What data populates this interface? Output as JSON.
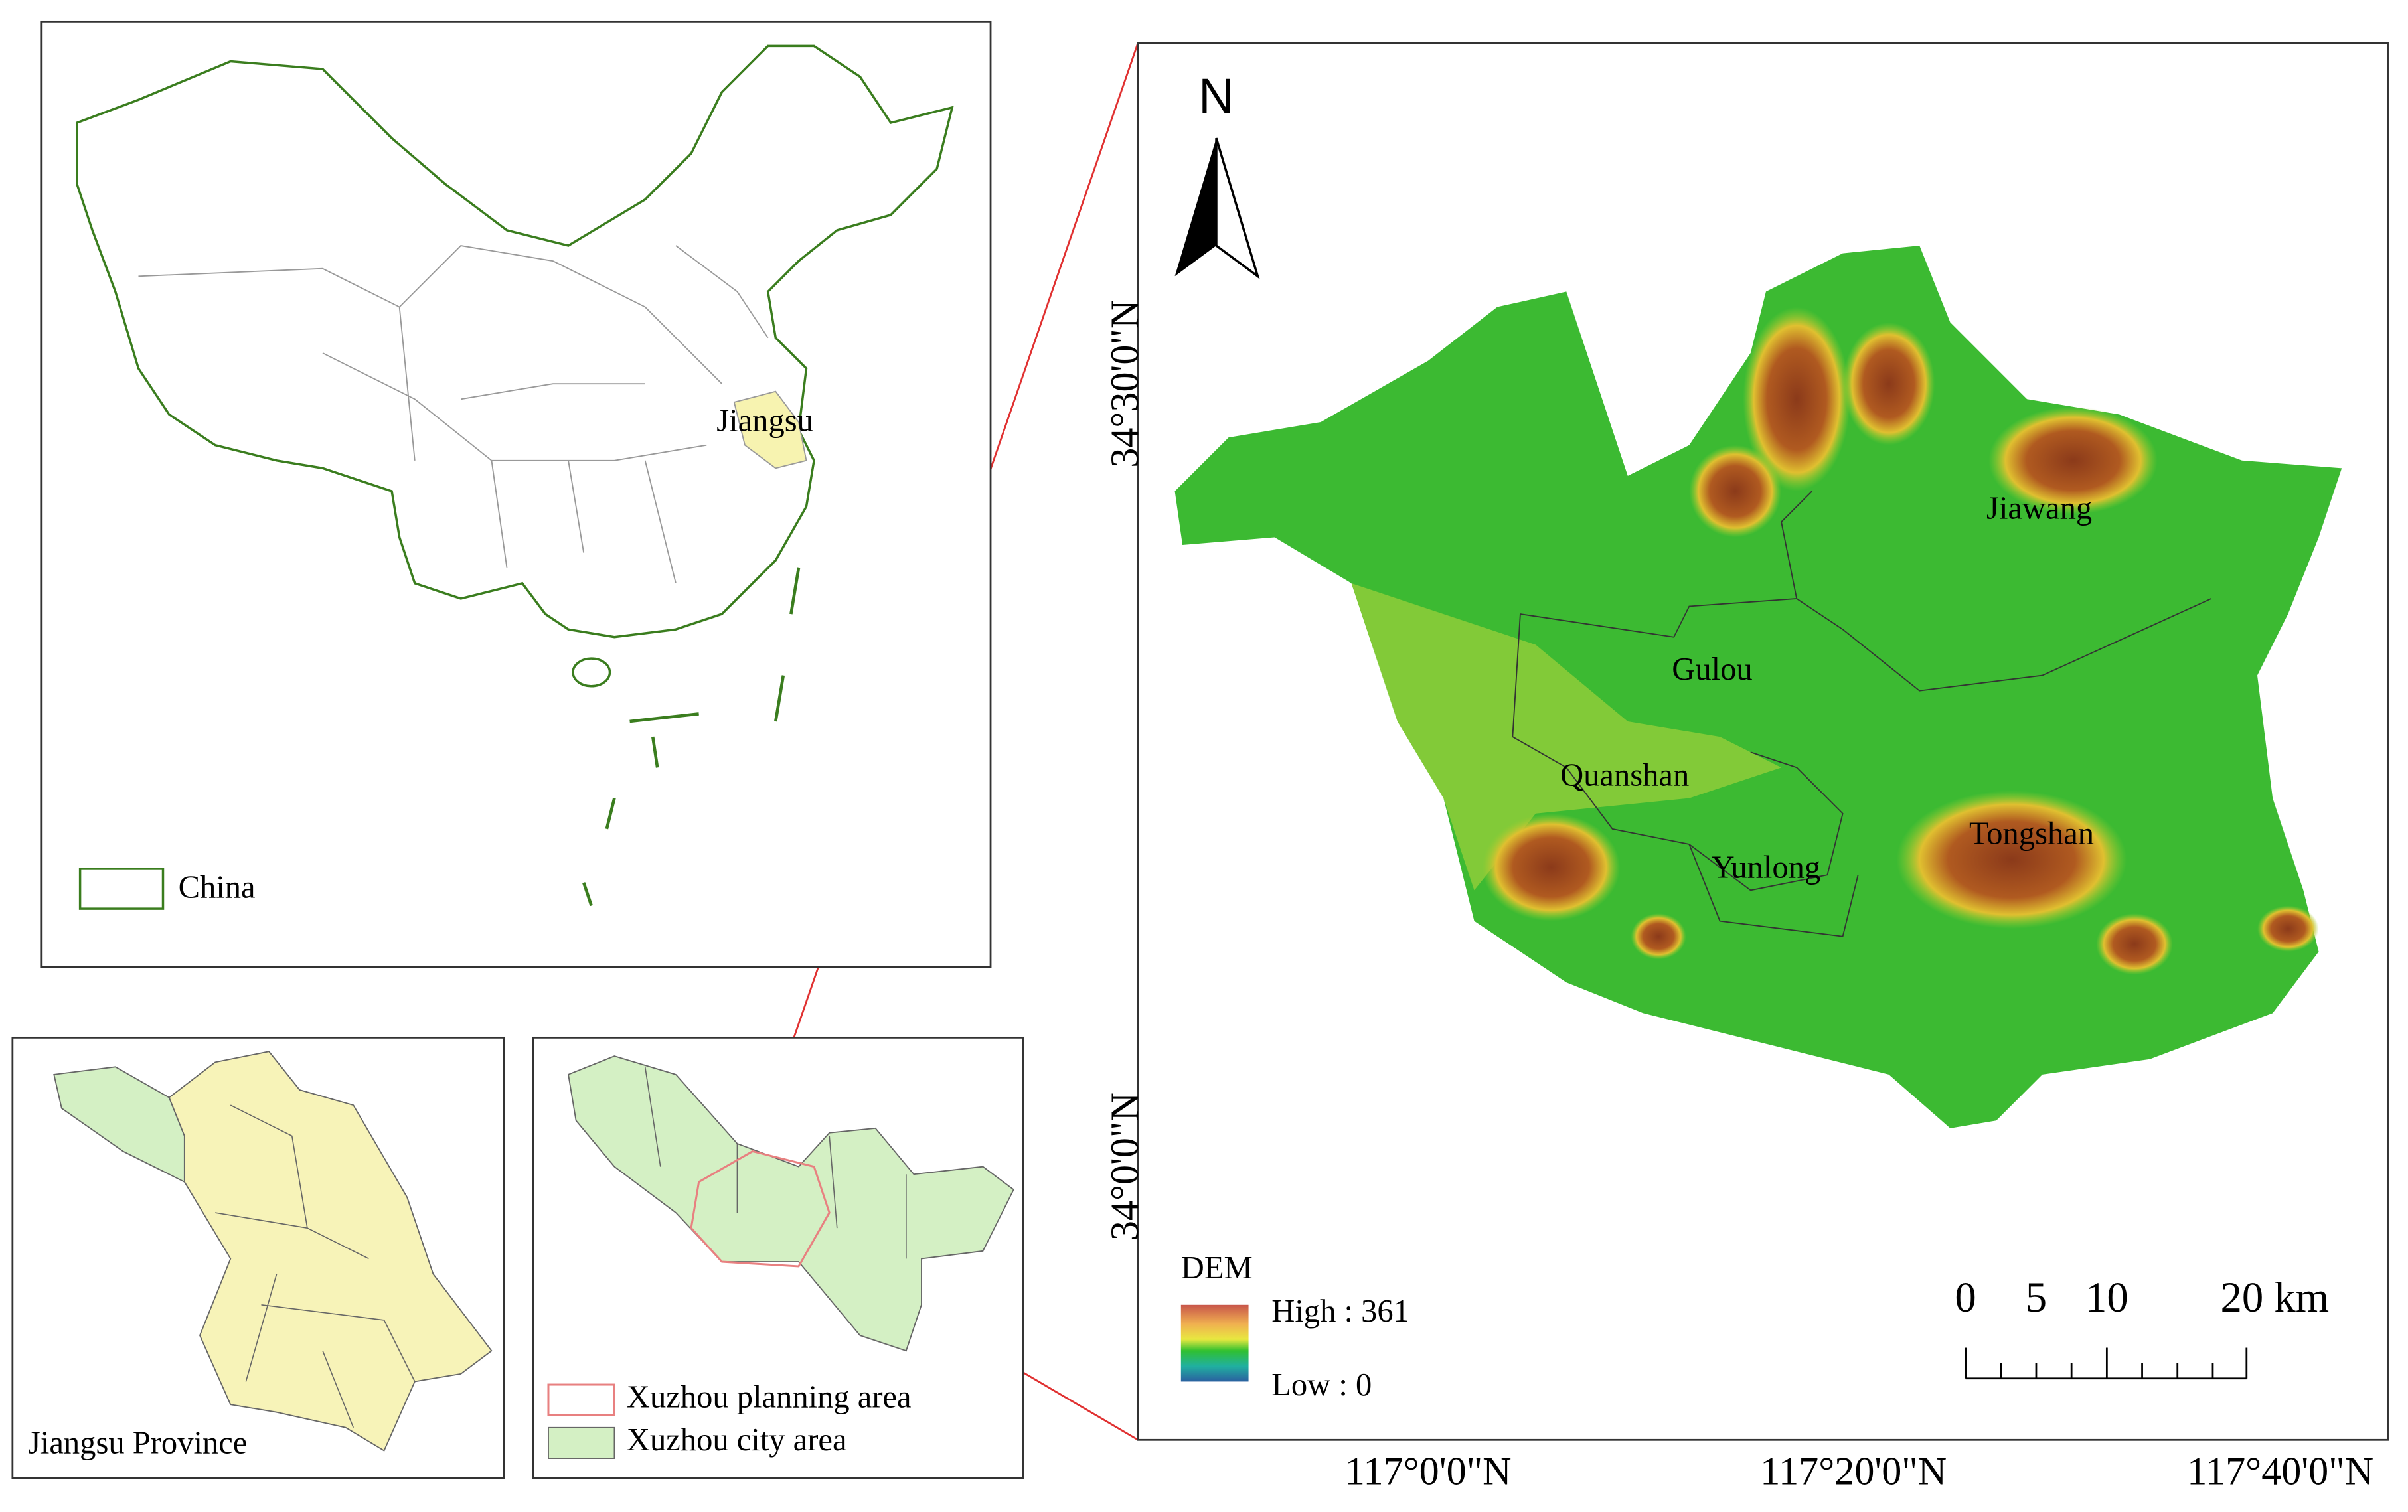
{
  "china_panel": {
    "province_label": "Jiangsu",
    "legend": "China"
  },
  "jiangsu_panel": {
    "title": "Jiangsu Province"
  },
  "xuzhou_panel": {
    "legend": [
      "Xuzhou planning area",
      "Xuzhou city area"
    ]
  },
  "main_map": {
    "north": "N",
    "lat_labels": [
      "34°30'0\"N",
      "34°0'0\"N"
    ],
    "lon_labels": [
      "117°0'0\"N",
      "117°20'0\"N",
      "117°40'0\"N"
    ],
    "districts": [
      "Jiawang",
      "Gulou",
      "Quanshan",
      "Yunlong",
      "Tongshan"
    ],
    "dem_legend": {
      "title": "DEM",
      "high": "High : 361",
      "low": "Low : 0"
    },
    "scale_bar": [
      "0",
      "5",
      "10",
      "20 km"
    ]
  }
}
